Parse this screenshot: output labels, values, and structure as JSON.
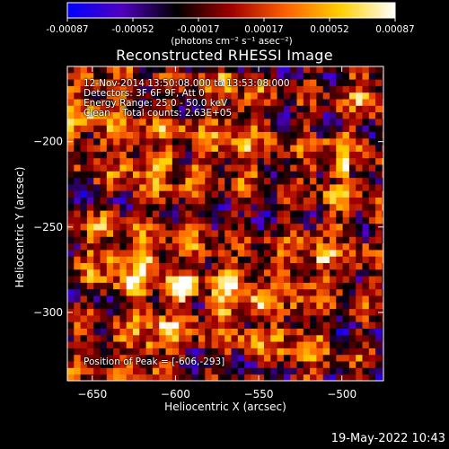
{
  "chart_data": {
    "type": "heatmap",
    "title": "Reconstructed RHESSI Image",
    "xlabel": "Heliocentric X (arcsec)",
    "ylabel": "Heliocentric Y (arcsec)",
    "xlim": [
      -665,
      -475
    ],
    "ylim": [
      -340,
      -156
    ],
    "x_ticks": [
      -650,
      -600,
      -550,
      -500
    ],
    "y_ticks": [
      -200,
      -250,
      -300
    ],
    "x_tick_labels": [
      "−650",
      "−600",
      "−550",
      "−500"
    ],
    "y_tick_labels": [
      "−200",
      "−250",
      "−300"
    ],
    "colorbar": {
      "range": [
        -0.00087,
        0.00087
      ],
      "tick_labels": [
        "-0.00087",
        "-0.00052",
        "-0.00017",
        "0.00017",
        "0.00052",
        "0.00087"
      ],
      "label": "(photons cm⁻² s⁻¹ asec⁻²)",
      "colormap": [
        "#0000ff",
        "#5000c0",
        "#000000",
        "#a00000",
        "#ff6000",
        "#ffd000",
        "#ffffff"
      ]
    },
    "annotations": [
      "12-Nov-2014 13:50:08.000 to 13:53:08.000",
      "Detectors: 3F 6F 9F, Att 0",
      "Energy Range: 25.0 - 50.0 keV",
      "Clean    Total counts: 2.63E+05"
    ],
    "peak_label": "Position of Peak = [-606,-293]",
    "peak": [
      -606,
      -293
    ]
  },
  "footer": {
    "timestamp": "19-May-2022 10:43"
  }
}
